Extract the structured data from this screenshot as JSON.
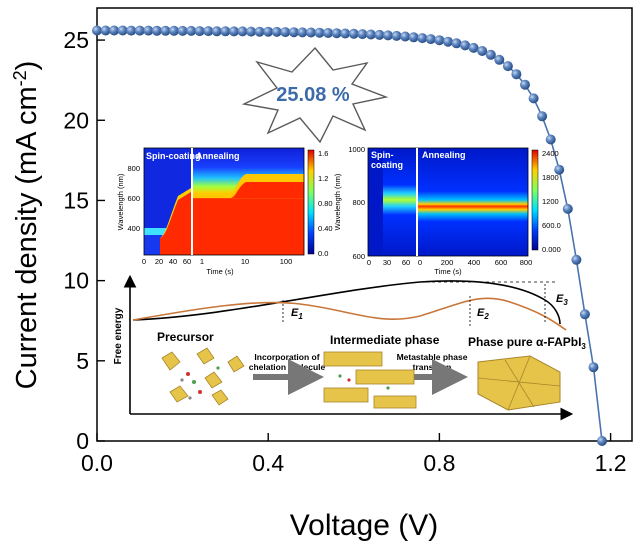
{
  "chart_data": {
    "type": "line",
    "xlabel": "Voltage (V)",
    "ylabel": "Current density (mA cm",
    "ylabel_sup": "-2",
    "ylabel_close": ")",
    "xlim": [
      0.0,
      1.25
    ],
    "ylim": [
      0,
      27
    ],
    "xticks": [
      0.0,
      0.4,
      0.8,
      1.2
    ],
    "xtick_labels": [
      "0.0",
      "0.4",
      "0.8",
      "1.2"
    ],
    "yticks": [
      0,
      5,
      10,
      15,
      20,
      25
    ],
    "ytick_labels": [
      "0",
      "5",
      "10",
      "15",
      "20",
      "25"
    ],
    "series": [
      {
        "name": "J-V",
        "color": "#4a74b0",
        "x": [
          0.0,
          0.02,
          0.04,
          0.06,
          0.08,
          0.1,
          0.12,
          0.14,
          0.16,
          0.18,
          0.2,
          0.22,
          0.24,
          0.26,
          0.28,
          0.3,
          0.32,
          0.34,
          0.36,
          0.38,
          0.4,
          0.42,
          0.44,
          0.46,
          0.48,
          0.5,
          0.52,
          0.54,
          0.56,
          0.58,
          0.6,
          0.62,
          0.64,
          0.66,
          0.68,
          0.7,
          0.72,
          0.74,
          0.76,
          0.78,
          0.8,
          0.82,
          0.84,
          0.86,
          0.88,
          0.9,
          0.92,
          0.94,
          0.96,
          0.98,
          1.0,
          1.02,
          1.04,
          1.06,
          1.08,
          1.1,
          1.12,
          1.14,
          1.16,
          1.18
        ],
        "y": [
          25.6,
          25.6,
          25.6,
          25.6,
          25.59,
          25.59,
          25.59,
          25.58,
          25.58,
          25.58,
          25.57,
          25.57,
          25.56,
          25.56,
          25.55,
          25.55,
          25.54,
          25.54,
          25.53,
          25.52,
          25.52,
          25.51,
          25.5,
          25.49,
          25.48,
          25.47,
          25.46,
          25.44,
          25.43,
          25.41,
          25.39,
          25.37,
          25.35,
          25.32,
          25.29,
          25.26,
          25.22,
          25.17,
          25.12,
          25.06,
          24.99,
          24.9,
          24.8,
          24.67,
          24.51,
          24.32,
          24.08,
          23.77,
          23.38,
          22.87,
          22.22,
          21.36,
          20.25,
          18.8,
          16.92,
          14.47,
          11.3,
          7.9,
          4.6,
          0.0
        ]
      }
    ],
    "annotations": {
      "pce": "25.08 %",
      "inset_left": {
        "label_spin": "Spin-coating",
        "label_spin_line1": "Spin-",
        "label_spin_line2": "coating",
        "label_anneal": "Annealing",
        "ylabel": "Wavelength (nm)",
        "xlabel": "Time (s)",
        "yticks": [
          "800",
          "600",
          "400"
        ],
        "xticks_spin": [
          "0",
          "20",
          "40",
          "60"
        ],
        "xticks_anneal": [
          "1",
          "10",
          "100"
        ],
        "colorbar_ticks": [
          "1.6",
          "1.2",
          "0.80",
          "0.40",
          "0.0"
        ]
      },
      "inset_right": {
        "label_spin_line1": "Spin-",
        "label_spin_line2": "coating",
        "label_anneal": "Annealing",
        "ylabel": "Wavelength (nm)",
        "xlabel": "Time (s)",
        "yticks": [
          "1000",
          "800",
          "600"
        ],
        "xticks_spin": [
          "0",
          "30",
          "60"
        ],
        "xticks_anneal": [
          "0",
          "200",
          "400",
          "600",
          "800"
        ],
        "colorbar_ticks": [
          "2400",
          "1800",
          "1200",
          "600.0",
          "0.000"
        ]
      },
      "energy": {
        "ylabel": "Free energy",
        "e1": "E",
        "e1_sub": "1",
        "e2": "E",
        "e2_sub": "2",
        "e3": "E",
        "e3_sub": "3",
        "precursor": "Precursor",
        "intermediate": "Intermediate phase",
        "final_prefix": "Phase pure α-FAPbI",
        "final_sub": "3",
        "step1_line1": "Incorporation of",
        "step1_line2": "chelation molecule",
        "step2_line1": "Metastable phase",
        "step2_line2": "transition"
      }
    }
  }
}
